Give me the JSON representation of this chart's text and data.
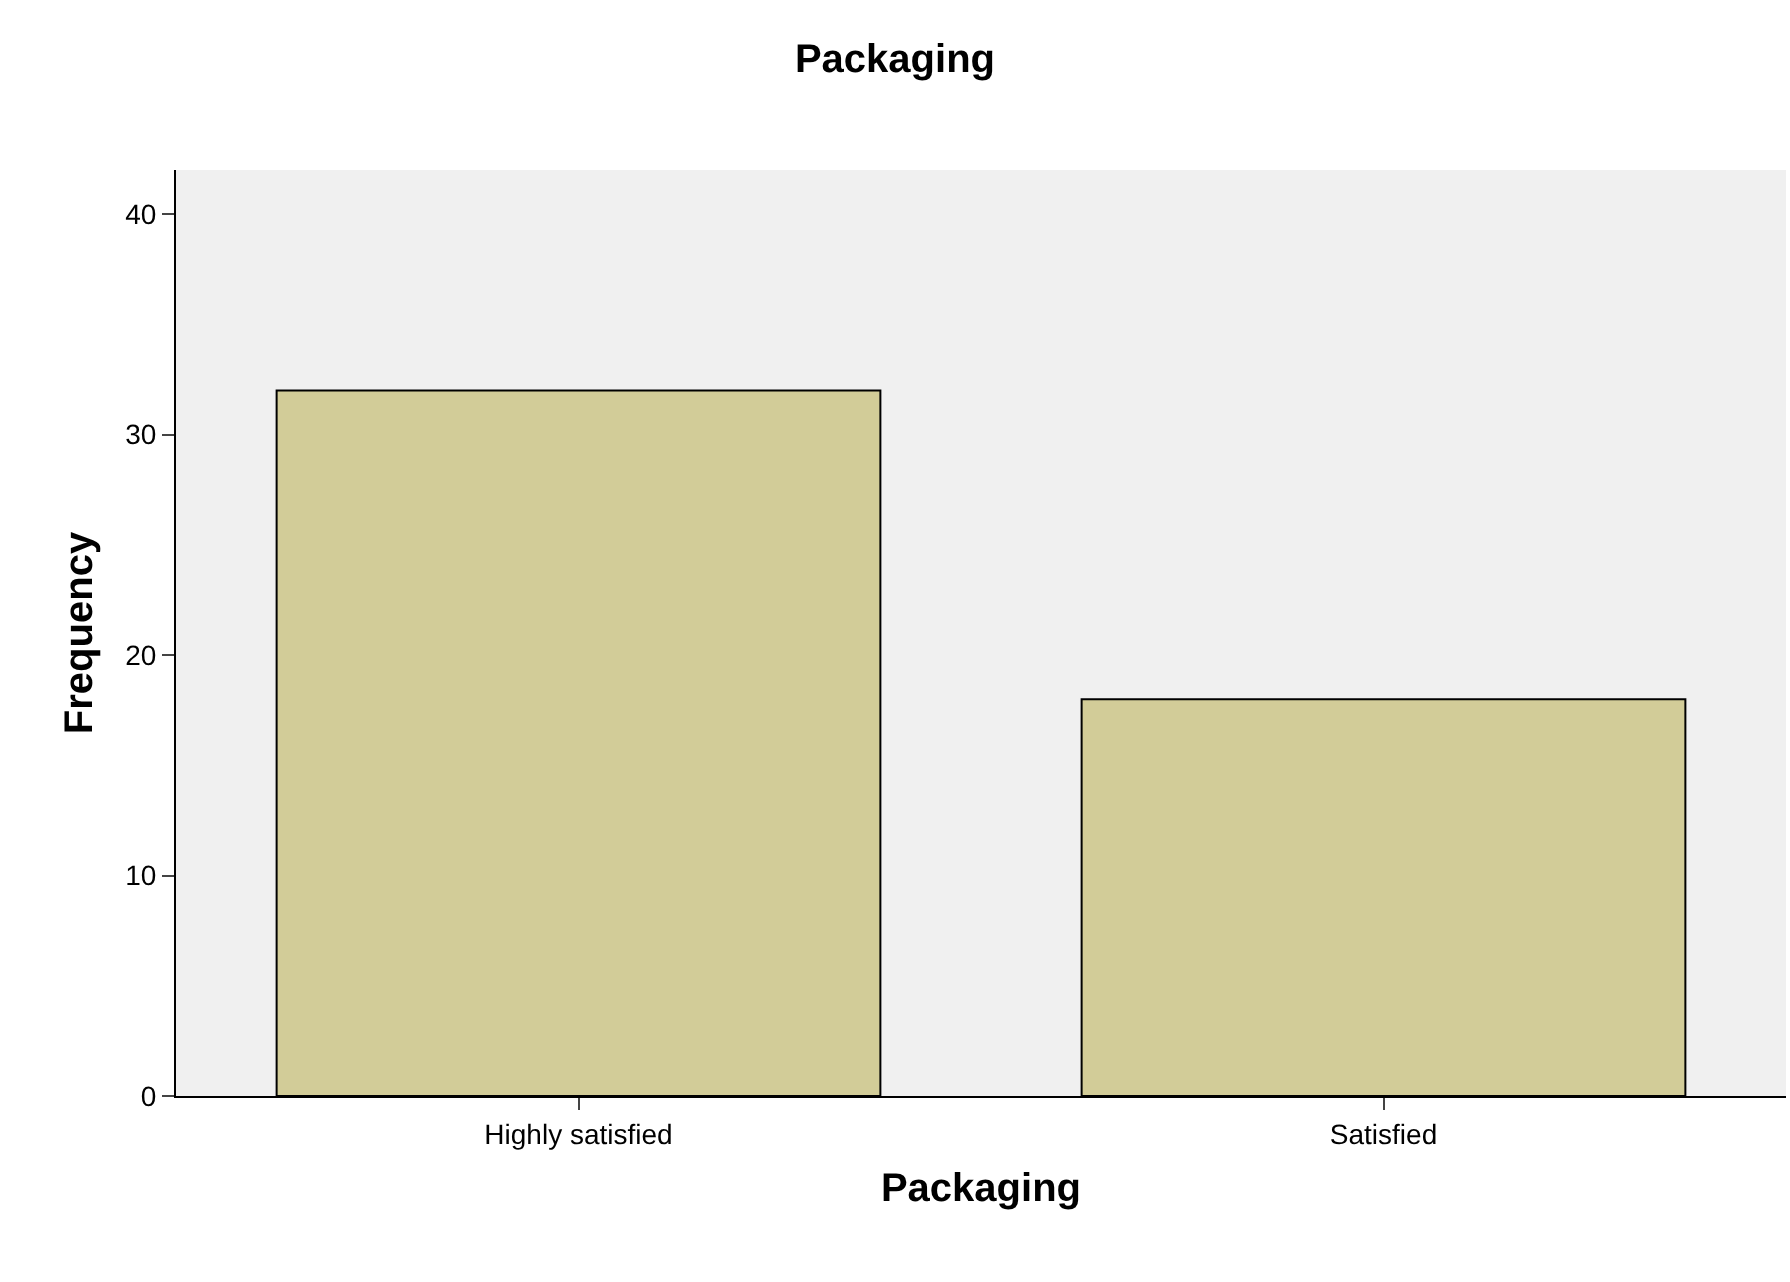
{
  "chart_data": {
    "type": "bar",
    "title": "Packaging",
    "xlabel": "Packaging",
    "ylabel": "Frequency",
    "categories": [
      "Highly satisfied",
      "Satisfied"
    ],
    "values": [
      32,
      18
    ],
    "color": "#d2cc98",
    "ylim": [
      0,
      42
    ],
    "yticks": [
      0,
      10,
      20,
      30,
      40
    ],
    "grid": false,
    "legend": false
  }
}
